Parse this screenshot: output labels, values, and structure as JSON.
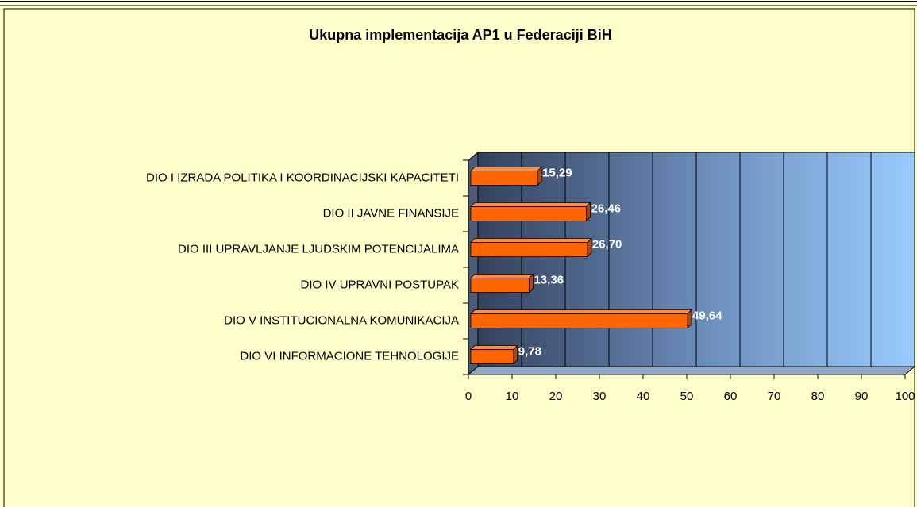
{
  "chart_data": {
    "type": "bar",
    "orientation": "horizontal",
    "three_d": true,
    "title": "Ukupna implementacija AP1 u Federaciji BiH",
    "categories": [
      "DIO I IZRADA POLITIKA I KOORDINACIJSKI KAPACITETI",
      "DIO II JAVNE FINANSIJE",
      "DIO III UPRAVLJANJE LJUDSKIM POTENCIJALIMA",
      "DIO IV UPRAVNI POSTUPAK",
      "DIO V INSTITUCIONALNA KOMUNIKACIJA",
      "DIO VI INFORMACIONE TEHNOLOGIJE"
    ],
    "values": [
      15.29,
      26.46,
      26.7,
      13.36,
      49.64,
      9.78
    ],
    "value_labels": [
      "15,29",
      "26,46",
      "26,70",
      "13,36",
      "49,64",
      "9,78"
    ],
    "color": "#ff6600",
    "xlim": [
      0,
      100
    ],
    "xticks": [
      0,
      10,
      20,
      30,
      40,
      50,
      60,
      70,
      80,
      90,
      100
    ],
    "grid": true
  }
}
